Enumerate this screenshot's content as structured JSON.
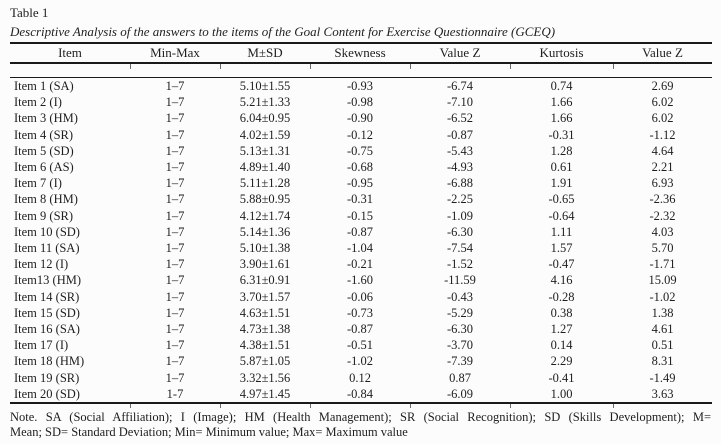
{
  "page": {
    "title": "Table 1",
    "caption": "Descriptive Analysis of the answers to the items of the Goal Content for Exercise Questionnaire (GCEQ)"
  },
  "table": {
    "columns": [
      "Item",
      "Min-Max",
      "M±SD",
      "Skewness",
      "Value Z",
      "Kurtosis",
      "Value Z"
    ],
    "rows": [
      [
        "Item 1 (SA)",
        "1–7",
        "5.10±1.55",
        "-0.93",
        "-6.74",
        "0.74",
        "2.69"
      ],
      [
        "Item 2 (I)",
        "1–7",
        "5.21±1.33",
        "-0.98",
        "-7.10",
        "1.66",
        "6.02"
      ],
      [
        "Item 3 (HM)",
        "1–7",
        "6.04±0.95",
        "-0.90",
        "-6.52",
        "1.66",
        "6.02"
      ],
      [
        "Item 4 (SR)",
        "1–7",
        "4.02±1.59",
        "-0.12",
        "-0.87",
        "-0.31",
        "-1.12"
      ],
      [
        "Item 5 (SD)",
        "1–7",
        "5.13±1.31",
        "-0.75",
        "-5.43",
        "1.28",
        "4.64"
      ],
      [
        "Item 6 (AS)",
        "1–7",
        "4.89±1.40",
        "-0.68",
        "-4.93",
        "0.61",
        "2.21"
      ],
      [
        "Item 7 (I)",
        "1–7",
        "5.11±1.28",
        "-0.95",
        "-6.88",
        "1.91",
        "6.93"
      ],
      [
        "Item 8 (HM)",
        "1–7",
        "5.88±0.95",
        "-0.31",
        "-2.25",
        "-0.65",
        "-2.36"
      ],
      [
        "Item 9 (SR)",
        "1–7",
        "4.12±1.74",
        "-0.15",
        "-1.09",
        "-0.64",
        "-2.32"
      ],
      [
        "Item 10 (SD)",
        "1–7",
        "5.14±1.36",
        "-0.87",
        "-6.30",
        "1.11",
        "4.03"
      ],
      [
        "Item 11 (SA)",
        "1–7",
        "5.10±1.38",
        "-1.04",
        "-7.54",
        "1.57",
        "5.70"
      ],
      [
        "Item 12 (I)",
        "1–7",
        "3.90±1.61",
        "-0.21",
        "-1.52",
        "-0.47",
        "-1.71"
      ],
      [
        "Item13 (HM)",
        "1–7",
        "6.31±0.91",
        "-1.60",
        "-11.59",
        "4.16",
        "15.09"
      ],
      [
        "Item 14 (SR)",
        "1–7",
        "3.70±1.57",
        "-0.06",
        "-0.43",
        "-0.28",
        "-1.02"
      ],
      [
        "Item 15 (SD)",
        "1–7",
        "4.63±1.51",
        "-0.73",
        "-5.29",
        "0.38",
        "1.38"
      ],
      [
        "Item 16 (SA)",
        "1–7",
        "4.73±1.38",
        "-0.87",
        "-6.30",
        "1.27",
        "4.61"
      ],
      [
        "Item 17 (I)",
        "1–7",
        "4.38±1.51",
        "-0.51",
        "-3.70",
        "0.14",
        "0.51"
      ],
      [
        "Item 18 (HM)",
        "1–7",
        "5.87±1.05",
        "-1.02",
        "-7.39",
        "2.29",
        "8.31"
      ],
      [
        "Item 19 (SR)",
        "1–7",
        "3.32±1.56",
        "0.12",
        "0.87",
        "-0.41",
        "-1.49"
      ],
      [
        "Item 20 (SD)",
        "1-7",
        "4.97±1.45",
        "-0.84",
        "-6.09",
        "1.00",
        "3.63"
      ]
    ]
  },
  "note": {
    "line1": "Note. SA (Social Affiliation); I (Image); HM (Health Management); SR (Social Recognition); SD (Skills Development); M=",
    "line2": "Mean; SD= Standard Deviation; Min= Minimum value; Max= Maximum value"
  },
  "colors": {
    "text": "#1e1e1e",
    "rule": "#1a1a1a",
    "tick": "#6b6b6b",
    "background": "#fcfcfc"
  }
}
